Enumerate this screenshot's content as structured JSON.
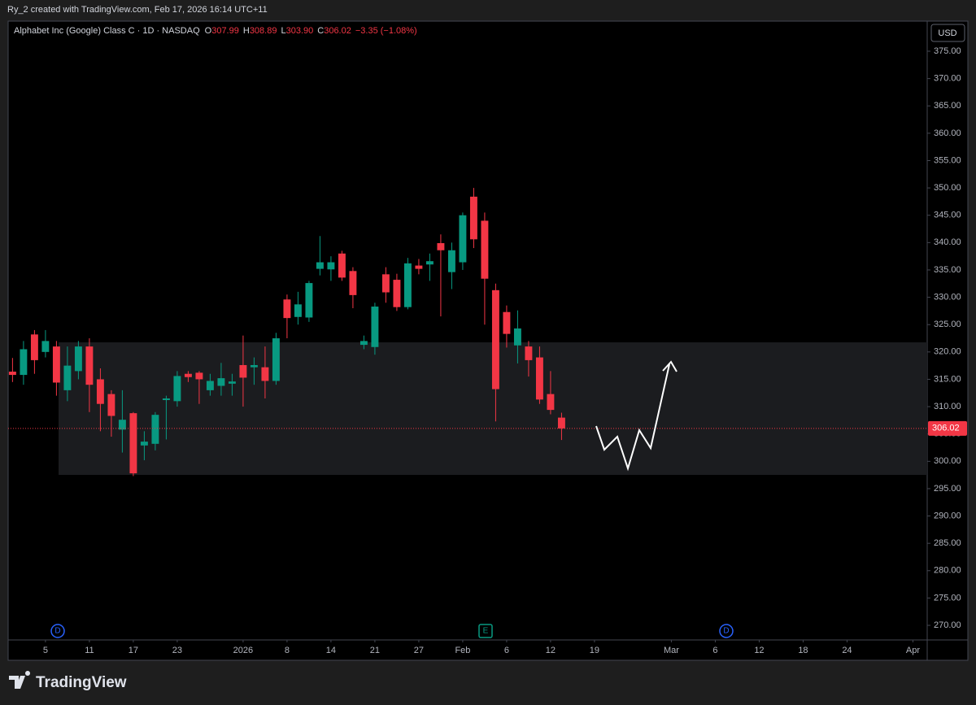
{
  "header": "Ry_2 created with TradingView.com, Feb 17, 2026 16:14 UTC+11",
  "currency": "USD",
  "brand": "TradingView",
  "legend": {
    "symbol": "Alphabet Inc (Google) Class C · 1D · NASDAQ",
    "items": [
      {
        "key": "O",
        "value": "307.99"
      },
      {
        "key": "H",
        "value": "308.89"
      },
      {
        "key": "L",
        "value": "303.90"
      },
      {
        "key": "C",
        "value": "306.02"
      }
    ],
    "change": "−3.35 (−1.08%)"
  },
  "events": [
    "D",
    "E",
    "D"
  ],
  "chart_data": {
    "type": "candlestick",
    "up_color": "#089981",
    "down_color": "#f23645",
    "open": [
      316.4,
      315.8,
      323.2,
      320,
      321,
      313,
      316.5,
      321,
      315,
      312.3,
      305.8,
      308.8,
      302.9,
      303.2,
      311.2,
      311,
      316,
      316.2,
      313,
      313.8,
      314.2,
      317.6,
      317.2,
      317.2,
      314.7,
      329.6,
      326.4,
      326.3,
      335.2,
      335.1,
      338,
      334.8,
      321.3,
      320.9,
      334.2,
      333.2,
      328.2,
      335.8,
      336,
      339.9,
      334.6,
      336.4,
      348.4,
      344,
      331.3,
      327.3,
      321.2,
      321,
      319,
      312.3,
      307.99
    ],
    "high": [
      318.9,
      322,
      324,
      324,
      322,
      321,
      322,
      322.5,
      317,
      313,
      313,
      309,
      305.5,
      309,
      312,
      316.5,
      316.5,
      316.5,
      316,
      318,
      316,
      323,
      319,
      321,
      323.5,
      330.5,
      331,
      333,
      341.2,
      337.5,
      338.5,
      335.5,
      323,
      329,
      335.5,
      334.3,
      337.2,
      337,
      338,
      341.5,
      340,
      345.5,
      350,
      345.5,
      332.5,
      328.5,
      327.6,
      322,
      321,
      316.5,
      308.89
    ],
    "low": [
      314.5,
      314,
      316,
      319,
      312,
      311,
      315,
      309,
      305.5,
      304.5,
      301.6,
      297.3,
      300.2,
      302,
      304,
      310,
      314.5,
      310.5,
      312,
      312,
      312,
      310,
      314,
      311.5,
      314,
      322.5,
      325,
      325.5,
      334,
      333,
      333,
      328,
      320.5,
      319.5,
      329,
      327.5,
      327.8,
      334.2,
      333,
      326.5,
      331.5,
      335,
      339,
      325,
      307.3,
      320.8,
      317.9,
      315.5,
      310.5,
      308.6,
      303.9
    ],
    "close": [
      315.8,
      320.5,
      318.5,
      322,
      314.4,
      317.5,
      321,
      314,
      310.5,
      308.3,
      307.6,
      297.8,
      303.6,
      308.5,
      311.5,
      315.6,
      315.4,
      315,
      314.7,
      315.2,
      314.6,
      315.3,
      317.6,
      314.7,
      322.5,
      326.2,
      328.7,
      332.6,
      336.4,
      336.4,
      333.6,
      330.4,
      322,
      328.3,
      330.9,
      328.2,
      336.2,
      335.2,
      336.6,
      338.6,
      338.6,
      345,
      340.6,
      333.4,
      313.2,
      323.3,
      324.3,
      318.5,
      311.3,
      309.4,
      306.02
    ],
    "xlim": [
      -0.4,
      83.3
    ],
    "xticks": [
      {
        "value": 3,
        "label": "5"
      },
      {
        "value": 7,
        "label": "11"
      },
      {
        "value": 11,
        "label": "17"
      },
      {
        "value": 15,
        "label": "23"
      },
      {
        "value": 21,
        "label": "2026"
      },
      {
        "value": 25,
        "label": "8"
      },
      {
        "value": 29,
        "label": "14"
      },
      {
        "value": 33,
        "label": "21"
      },
      {
        "value": 37,
        "label": "27"
      },
      {
        "value": 41,
        "label": "Feb"
      },
      {
        "value": 45,
        "label": "6"
      },
      {
        "value": 49,
        "label": "12"
      },
      {
        "value": 53,
        "label": "19"
      },
      {
        "value": 60,
        "label": "Mar"
      },
      {
        "value": 64,
        "label": "6"
      },
      {
        "value": 68,
        "label": "12"
      },
      {
        "value": 72,
        "label": "18"
      },
      {
        "value": 76,
        "label": "24"
      },
      {
        "value": 82,
        "label": "Apr"
      }
    ],
    "ylim": [
      267.33,
      380.5
    ],
    "yticks": [
      {
        "value": 270,
        "label": "270.00"
      },
      {
        "value": 275,
        "label": "275.00"
      },
      {
        "value": 280,
        "label": "280.00"
      },
      {
        "value": 285,
        "label": "285.00"
      },
      {
        "value": 290,
        "label": "290.00"
      },
      {
        "value": 295,
        "label": "295.00"
      },
      {
        "value": 300,
        "label": "300.00"
      },
      {
        "value": 305,
        "label": "305.00"
      },
      {
        "value": 310,
        "label": "310.00"
      },
      {
        "value": 315,
        "label": "315.00"
      },
      {
        "value": 320,
        "label": "320.00"
      },
      {
        "value": 325,
        "label": "325.00"
      },
      {
        "value": 330,
        "label": "330.00"
      },
      {
        "value": 335,
        "label": "335.00"
      },
      {
        "value": 340,
        "label": "340.00"
      },
      {
        "value": 345,
        "label": "345.00"
      },
      {
        "value": 350,
        "label": "350.00"
      },
      {
        "value": 355,
        "label": "355.00"
      },
      {
        "value": 360,
        "label": "360.00"
      },
      {
        "value": 365,
        "label": "365.00"
      },
      {
        "value": 370,
        "label": "370.00"
      },
      {
        "value": 375,
        "label": "375.00"
      }
    ],
    "grid": false
  }
}
